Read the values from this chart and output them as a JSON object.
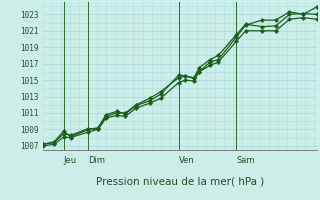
{
  "title": "Pression niveau de la mer( hPa )",
  "bg_color": "#cceee8",
  "grid_color": "#aadddd",
  "line_color": "#1a5e1a",
  "marker_color": "#1a5e1a",
  "axis_color": "#2a6e2a",
  "ylim": [
    1006.5,
    1024.5
  ],
  "yticks": [
    1007,
    1009,
    1011,
    1013,
    1015,
    1017,
    1019,
    1021,
    1023
  ],
  "day_labels": [
    "Jeu",
    "Dim",
    "Ven",
    "Sam"
  ],
  "day_positions": [
    0.075,
    0.165,
    0.495,
    0.705
  ],
  "vline_positions": [
    0.075,
    0.165,
    0.495,
    0.705
  ],
  "series1_x": [
    0.0,
    0.04,
    0.075,
    0.1,
    0.165,
    0.2,
    0.23,
    0.27,
    0.3,
    0.34,
    0.39,
    0.43,
    0.495,
    0.52,
    0.55,
    0.57,
    0.61,
    0.64,
    0.705,
    0.74,
    0.8,
    0.85,
    0.9,
    0.95,
    1.0
  ],
  "series1_y": [
    1007.2,
    1007.5,
    1008.8,
    1008.1,
    1009.0,
    1009.2,
    1010.8,
    1011.2,
    1010.9,
    1011.9,
    1012.5,
    1013.3,
    1015.6,
    1015.5,
    1015.3,
    1016.0,
    1017.2,
    1017.5,
    1020.2,
    1021.7,
    1022.3,
    1022.3,
    1023.3,
    1023.0,
    1023.9
  ],
  "series2_x": [
    0.0,
    0.04,
    0.075,
    0.1,
    0.165,
    0.2,
    0.23,
    0.27,
    0.3,
    0.34,
    0.39,
    0.43,
    0.495,
    0.52,
    0.55,
    0.57,
    0.61,
    0.64,
    0.705,
    0.74,
    0.8,
    0.85,
    0.9,
    0.95,
    1.0
  ],
  "series2_y": [
    1007.2,
    1007.4,
    1008.5,
    1008.3,
    1009.1,
    1009.0,
    1010.6,
    1011.0,
    1011.0,
    1012.0,
    1012.8,
    1013.6,
    1015.3,
    1015.5,
    1015.2,
    1016.5,
    1017.5,
    1018.0,
    1020.5,
    1021.8,
    1021.5,
    1021.6,
    1023.0,
    1023.1,
    1023.0
  ],
  "series3_x": [
    0.0,
    0.04,
    0.075,
    0.1,
    0.165,
    0.2,
    0.23,
    0.27,
    0.3,
    0.34,
    0.39,
    0.43,
    0.495,
    0.52,
    0.55,
    0.57,
    0.61,
    0.64,
    0.705,
    0.74,
    0.8,
    0.85,
    0.9,
    0.95,
    1.0
  ],
  "series3_y": [
    1007.0,
    1007.2,
    1008.1,
    1008.0,
    1008.7,
    1009.0,
    1010.4,
    1010.7,
    1010.6,
    1011.6,
    1012.2,
    1012.8,
    1014.7,
    1015.0,
    1014.9,
    1016.0,
    1016.8,
    1017.2,
    1019.7,
    1021.0,
    1021.0,
    1021.0,
    1022.4,
    1022.6,
    1022.4
  ]
}
